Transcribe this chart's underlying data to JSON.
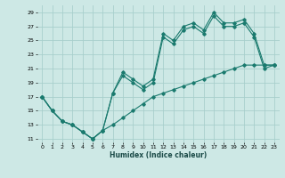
{
  "xlabel": "Humidex (Indice chaleur)",
  "bg_color": "#cde8e5",
  "grid_color": "#a8cfcc",
  "line_color": "#1a7a6e",
  "xlim": [
    -0.5,
    23.5
  ],
  "ylim": [
    10.5,
    30
  ],
  "yticks": [
    11,
    13,
    15,
    17,
    19,
    21,
    23,
    25,
    27,
    29
  ],
  "xticks": [
    0,
    1,
    2,
    3,
    4,
    5,
    6,
    7,
    8,
    9,
    10,
    11,
    12,
    13,
    14,
    15,
    16,
    17,
    18,
    19,
    20,
    21,
    22,
    23
  ],
  "series1_x": [
    0,
    1,
    2,
    3,
    4,
    5,
    6,
    7,
    8,
    9,
    10,
    11,
    12,
    13,
    14,
    15,
    16,
    17,
    18,
    19,
    20,
    21,
    22,
    23
  ],
  "series1_y": [
    17,
    15,
    13.5,
    13,
    12,
    11,
    12.2,
    17.5,
    20.5,
    19.5,
    18.5,
    19.5,
    26,
    25,
    27,
    27.5,
    26.5,
    29,
    27.5,
    27.5,
    28,
    26,
    21.5,
    21.5
  ],
  "series2_x": [
    0,
    1,
    2,
    3,
    4,
    5,
    6,
    7,
    8,
    9,
    10,
    11,
    12,
    13,
    14,
    15,
    16,
    17,
    18,
    19,
    20,
    21,
    22,
    23
  ],
  "series2_y": [
    17,
    15,
    13.5,
    13,
    12,
    11,
    12.2,
    17.5,
    20,
    19,
    18,
    19,
    25.5,
    24.5,
    26.5,
    27,
    26,
    28.5,
    27,
    27,
    27.5,
    25.5,
    21,
    21.5
  ],
  "series3_x": [
    0,
    1,
    2,
    3,
    4,
    5,
    6,
    7,
    8,
    9,
    10,
    11,
    12,
    13,
    14,
    15,
    16,
    17,
    18,
    19,
    20,
    21,
    22,
    23
  ],
  "series3_y": [
    17,
    15,
    13.5,
    13,
    12,
    11,
    12.2,
    13,
    14,
    15,
    16,
    17,
    17.5,
    18,
    18.5,
    19,
    19.5,
    20,
    20.5,
    21,
    21.5,
    21.5,
    21.5,
    21.5
  ]
}
